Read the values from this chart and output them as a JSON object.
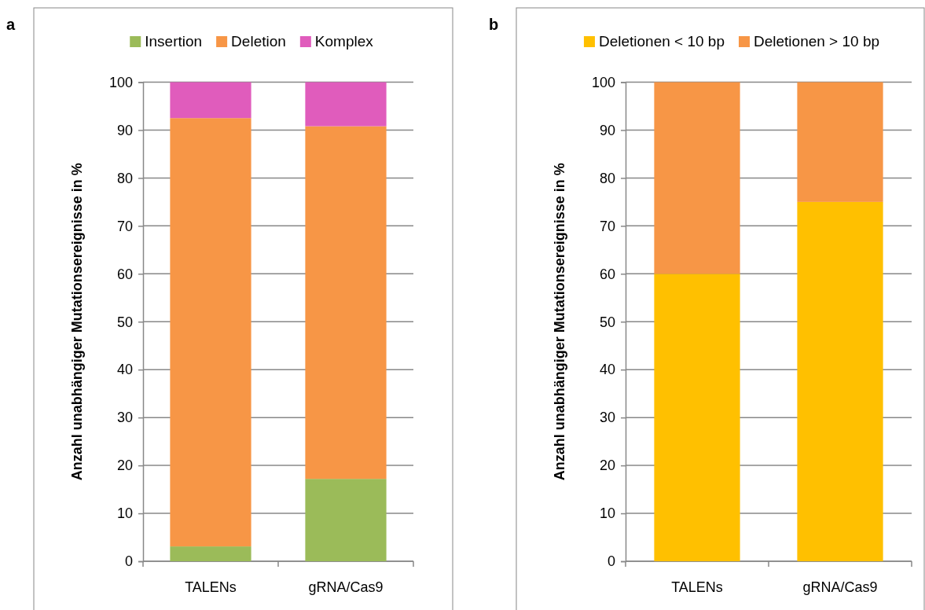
{
  "chart_data": [
    {
      "type": "bar",
      "stacked": true,
      "annotations": [
        "a"
      ],
      "ylabel": "Anzahl unabhängiger Mutationsereignisse in %",
      "categories": [
        "TALENs",
        "gRNA/Cas9"
      ],
      "ylim": [
        0,
        100
      ],
      "yticks": [
        0,
        10,
        20,
        30,
        40,
        50,
        60,
        70,
        80,
        90,
        100
      ],
      "grid": "y",
      "legend": "top",
      "series": [
        {
          "name": "Insertion",
          "color": "#9bbb59",
          "values": [
            3.1,
            17.2
          ]
        },
        {
          "name": "Deletion",
          "color": "#f79646",
          "values": [
            89.4,
            73.6
          ]
        },
        {
          "name": "Komplex",
          "color": "#e05cbc",
          "values": [
            7.5,
            9.2
          ]
        }
      ]
    },
    {
      "type": "bar",
      "stacked": true,
      "annotations": [
        "b"
      ],
      "ylabel": "Anzahl unabhängiger Mutationsereignisse in %",
      "categories": [
        "TALENs",
        "gRNA/Cas9"
      ],
      "ylim": [
        0,
        100
      ],
      "yticks": [
        0,
        10,
        20,
        30,
        40,
        50,
        60,
        70,
        80,
        90,
        100
      ],
      "grid": "y",
      "legend": "top",
      "series": [
        {
          "name": "Deletionen < 10 bp",
          "color": "#ffc000",
          "values": [
            60,
            75
          ]
        },
        {
          "name": "Deletionen > 10 bp",
          "color": "#f79646",
          "values": [
            40,
            25
          ]
        }
      ]
    }
  ]
}
